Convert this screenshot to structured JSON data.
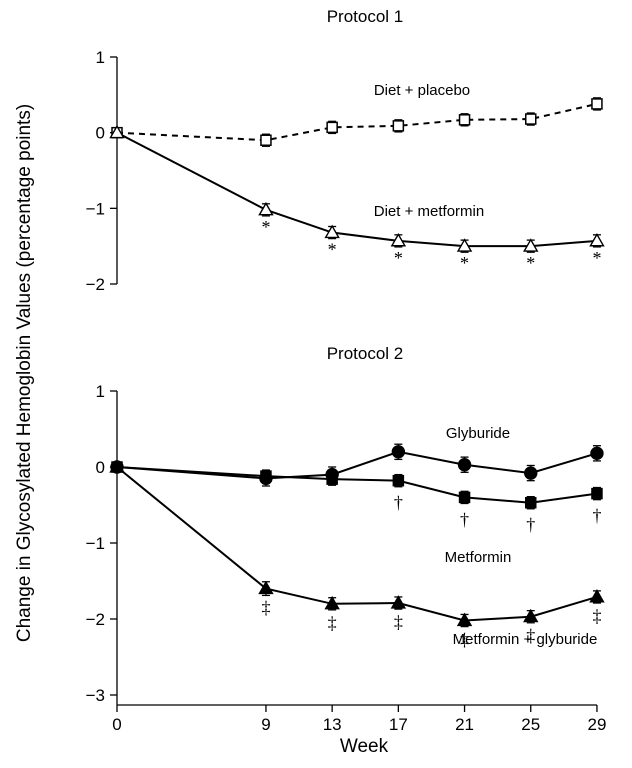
{
  "figure": {
    "ylabel": "Change in Glycosylated Hemoglobin Values (percentage points)",
    "xlabel": "Week"
  },
  "colors": {
    "ink": "#000000",
    "open_marker_fill": "#ffffff"
  },
  "chart_data": [
    {
      "type": "line",
      "title": "Protocol 1",
      "xlabel": "Week",
      "ylabel": "Change in Glycosylated Hemoglobin Values (percentage points)",
      "x": [
        0,
        9,
        13,
        17,
        21,
        25,
        29
      ],
      "xticks": [
        0,
        9,
        13,
        17,
        21,
        25,
        29
      ],
      "ylim": [
        -2,
        1
      ],
      "yticks": [
        1,
        0,
        -1,
        -2
      ],
      "grid": false,
      "series": [
        {
          "name": "Diet + placebo",
          "marker": "open-square",
          "line": "dashed",
          "values": [
            0,
            -0.1,
            0.07,
            0.09,
            0.17,
            0.18,
            0.38
          ],
          "errors": [
            0,
            0.08,
            0.08,
            0.08,
            0.08,
            0.08,
            0.08
          ]
        },
        {
          "name": "Diet + metformin",
          "marker": "open-triangle",
          "line": "solid",
          "values": [
            0,
            -1.02,
            -1.32,
            -1.43,
            -1.5,
            -1.5,
            -1.43
          ],
          "errors": [
            0,
            0.08,
            0.08,
            0.08,
            0.08,
            0.08,
            0.08
          ],
          "annotations": [
            "",
            "*",
            "*",
            "*",
            "*",
            "*",
            "*"
          ]
        }
      ]
    },
    {
      "type": "line",
      "title": "Protocol 2",
      "xlabel": "Week",
      "ylabel": "Change in Glycosylated Hemoglobin Values (percentage points)",
      "x": [
        0,
        9,
        13,
        17,
        21,
        25,
        29
      ],
      "xticks": [
        0,
        9,
        13,
        17,
        21,
        25,
        29
      ],
      "ylim": [
        -3,
        1
      ],
      "yticks": [
        1,
        0,
        -1,
        -2,
        -3
      ],
      "grid": false,
      "series": [
        {
          "name": "Glyburide",
          "marker": "filled-circle",
          "line": "solid",
          "values": [
            0,
            -0.15,
            -0.1,
            0.2,
            0.03,
            -0.08,
            0.18
          ],
          "errors": [
            0,
            0.1,
            0.1,
            0.1,
            0.1,
            0.1,
            0.1
          ]
        },
        {
          "name": "Metformin",
          "marker": "filled-square",
          "line": "solid",
          "values": [
            0,
            -0.12,
            -0.16,
            -0.18,
            -0.4,
            -0.47,
            -0.35
          ],
          "errors": [
            0,
            0.08,
            0.08,
            0.08,
            0.08,
            0.08,
            0.08
          ],
          "annotations": [
            "",
            "",
            "",
            "†",
            "†",
            "†",
            "†"
          ]
        },
        {
          "name": "Metformin + glyburide",
          "marker": "filled-triangle",
          "line": "solid",
          "values": [
            0,
            -1.6,
            -1.8,
            -1.79,
            -2.02,
            -1.97,
            -1.71
          ],
          "errors": [
            0,
            0.09,
            0.08,
            0.08,
            0.08,
            0.08,
            0.08
          ],
          "annotations": [
            "",
            "‡",
            "‡",
            "‡",
            "‡",
            "‡",
            "‡"
          ]
        }
      ]
    }
  ]
}
